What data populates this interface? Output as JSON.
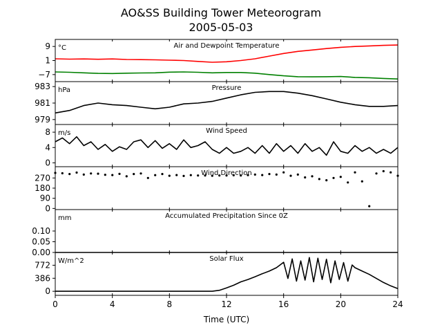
{
  "figure": {
    "title": "AO&SS Building Tower Meteorogram",
    "subtitle": "2005-05-03",
    "xlabel": "Time (UTC)",
    "xticks": [
      "0",
      "4",
      "8",
      "12",
      "16",
      "20",
      "24"
    ]
  },
  "chart_data": [
    {
      "type": "line",
      "title": "Air and Dewpoint Temperature",
      "unit": "°C",
      "ylim": [
        -11,
        13
      ],
      "yticks": [
        -7,
        1,
        9
      ],
      "ytick_labels": [
        "−7",
        "1",
        "9"
      ],
      "series": [
        {
          "color": "#ff0000",
          "x": [
            0,
            1,
            2,
            3,
            4,
            5,
            6,
            7,
            8,
            9,
            10,
            11,
            12,
            13,
            14,
            15,
            16,
            17,
            18,
            19,
            20,
            21,
            22,
            23,
            24
          ],
          "values": [
            2.0,
            1.8,
            1.9,
            1.7,
            1.9,
            1.6,
            1.5,
            1.4,
            1.2,
            1.0,
            0.5,
            0.0,
            0.3,
            1.0,
            2.0,
            3.5,
            5.0,
            6.2,
            7.0,
            7.8,
            8.5,
            9.0,
            9.3,
            9.6,
            9.8
          ]
        },
        {
          "color": "#008000",
          "x": [
            0,
            1,
            2,
            3,
            4,
            5,
            6,
            7,
            8,
            9,
            10,
            11,
            12,
            13,
            14,
            15,
            16,
            17,
            18,
            19,
            20,
            21,
            22,
            23,
            24
          ],
          "values": [
            -5.5,
            -5.7,
            -6.0,
            -6.3,
            -6.4,
            -6.2,
            -6.1,
            -6.0,
            -5.6,
            -5.5,
            -5.7,
            -6.0,
            -5.8,
            -5.8,
            -6.2,
            -7.0,
            -7.7,
            -8.2,
            -8.3,
            -8.2,
            -8.1,
            -8.6,
            -8.8,
            -9.2,
            -9.5
          ]
        }
      ]
    },
    {
      "type": "line",
      "title": "Pressure",
      "unit": "hPa",
      "ylim": [
        978.4,
        983.6
      ],
      "yticks": [
        979,
        981,
        983
      ],
      "ytick_labels": [
        "979",
        "981",
        "983"
      ],
      "series": [
        {
          "color": "#000000",
          "x": [
            0,
            1,
            2,
            3,
            4,
            5,
            6,
            7,
            8,
            9,
            10,
            11,
            12,
            13,
            14,
            15,
            16,
            17,
            18,
            19,
            20,
            21,
            22,
            23,
            24
          ],
          "values": [
            979.8,
            980.1,
            980.7,
            981.0,
            980.8,
            980.7,
            980.5,
            980.3,
            980.5,
            980.9,
            981.0,
            981.2,
            981.6,
            982.0,
            982.3,
            982.4,
            982.4,
            982.2,
            981.9,
            981.5,
            981.1,
            980.8,
            980.6,
            980.6,
            980.7
          ]
        }
      ]
    },
    {
      "type": "line",
      "title": "Wind Speed",
      "unit": "m/s",
      "ylim": [
        -1,
        10
      ],
      "yticks": [
        0,
        4,
        8
      ],
      "ytick_labels": [
        "0",
        "4",
        "8"
      ],
      "series": [
        {
          "color": "#000000",
          "x": [
            0,
            0.5,
            1,
            1.5,
            2,
            2.5,
            3,
            3.5,
            4,
            4.5,
            5,
            5.5,
            6,
            6.5,
            7,
            7.5,
            8,
            8.5,
            9,
            9.5,
            10,
            10.5,
            11,
            11.5,
            12,
            12.5,
            13,
            13.5,
            14,
            14.5,
            15,
            15.5,
            16,
            16.5,
            17,
            17.5,
            18,
            18.5,
            19,
            19.5,
            20,
            20.5,
            21,
            21.5,
            22,
            22.5,
            23,
            23.5,
            24
          ],
          "values": [
            5.5,
            6.5,
            5.0,
            6.8,
            4.5,
            5.5,
            3.5,
            4.8,
            3.0,
            4.2,
            3.5,
            5.5,
            6.0,
            4.0,
            5.8,
            3.8,
            5.0,
            3.5,
            6.0,
            4.0,
            4.5,
            5.5,
            3.5,
            2.5,
            4.0,
            2.5,
            3.0,
            4.0,
            2.5,
            4.5,
            2.5,
            5.0,
            3.0,
            4.5,
            2.5,
            5.0,
            3.0,
            4.0,
            2.0,
            5.5,
            3.0,
            2.5,
            4.5,
            3.0,
            4.0,
            2.5,
            3.5,
            2.5,
            4.0
          ]
        }
      ]
    },
    {
      "type": "scatter",
      "title": "Wind Direction",
      "unit": "",
      "ylim": [
        -10,
        370
      ],
      "yticks": [
        0,
        90,
        180,
        270
      ],
      "ytick_labels": [
        "0",
        "90",
        "180",
        "270"
      ],
      "series": [
        {
          "color": "#000000",
          "x": [
            0,
            0.5,
            1,
            1.5,
            2,
            2.5,
            3,
            3.5,
            4,
            4.5,
            5,
            5.5,
            6,
            6.5,
            7,
            7.5,
            8,
            8.5,
            9,
            9.5,
            10,
            10.5,
            11,
            11.5,
            12,
            12.5,
            13,
            13.5,
            14,
            14.5,
            15,
            15.5,
            16,
            16.5,
            17,
            17.5,
            18,
            18.5,
            19,
            19.5,
            20,
            20.5,
            21,
            21.5,
            22,
            22.5,
            23,
            23.5,
            24
          ],
          "values": [
            315,
            312,
            305,
            318,
            300,
            310,
            308,
            298,
            296,
            306,
            285,
            305,
            310,
            270,
            295,
            305,
            290,
            296,
            288,
            295,
            292,
            292,
            290,
            292,
            292,
            294,
            292,
            295,
            300,
            296,
            305,
            300,
            320,
            290,
            300,
            275,
            285,
            260,
            250,
            270,
            280,
            230,
            320,
            240,
            20,
            310,
            330,
            320,
            290
          ]
        }
      ]
    },
    {
      "type": "line",
      "title": "Accumulated Precipitation Since 0Z",
      "unit": "mm",
      "ylim": [
        0,
        0.2
      ],
      "yticks": [
        0.0,
        0.05,
        0.1
      ],
      "ytick_labels": [
        "0.00",
        "0.05",
        "0.10"
      ],
      "series": [
        {
          "color": "#000000",
          "x": [
            0,
            24
          ],
          "values": [
            0,
            0
          ]
        }
      ]
    },
    {
      "type": "line",
      "title": "Solar Flux",
      "unit": "W/m^2",
      "ylim": [
        -120,
        1150
      ],
      "yticks": [
        0,
        386,
        772
      ],
      "ytick_labels": [
        "0",
        "386",
        "772"
      ],
      "series": [
        {
          "color": "#000000",
          "x": [
            0,
            1,
            2,
            3,
            4,
            5,
            6,
            7,
            8,
            9,
            10,
            11,
            11.5,
            12,
            12.5,
            13,
            13.5,
            14,
            14.5,
            15,
            15.5,
            16,
            16.3,
            16.6,
            16.9,
            17.2,
            17.5,
            17.8,
            18.1,
            18.4,
            18.7,
            19,
            19.3,
            19.6,
            19.9,
            20.2,
            20.5,
            20.8,
            21,
            21.5,
            22,
            22.5,
            23,
            23.5,
            24
          ],
          "values": [
            0,
            0,
            0,
            0,
            0,
            0,
            0,
            0,
            0,
            0,
            0,
            0,
            30,
            100,
            180,
            280,
            350,
            430,
            520,
            600,
            700,
            860,
            380,
            960,
            300,
            900,
            330,
            1000,
            280,
            980,
            350,
            950,
            250,
            900,
            350,
            850,
            300,
            780,
            700,
            600,
            500,
            380,
            260,
            160,
            80
          ]
        }
      ]
    }
  ]
}
